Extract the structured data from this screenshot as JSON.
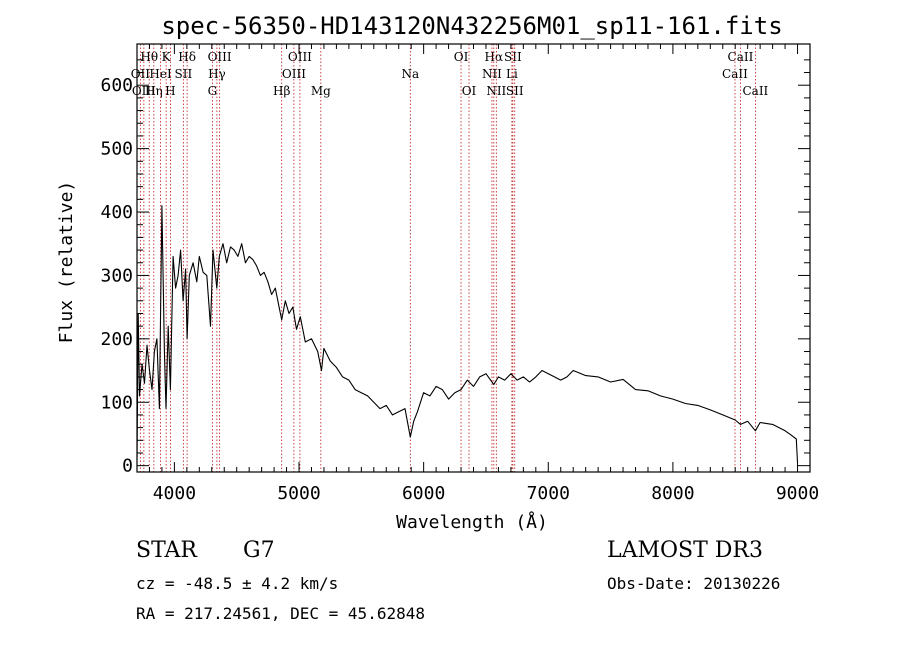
{
  "chart_data": {
    "type": "line",
    "title": "spec-56350-HD143120N432256M01_sp11-161.fits",
    "xlabel": "Wavelength (Å)",
    "ylabel": "Flux (relative)",
    "xlim": [
      3700,
      9100
    ],
    "ylim": [
      -10,
      665
    ],
    "xticks": [
      4000,
      5000,
      6000,
      7000,
      8000,
      9000
    ],
    "yticks": [
      0,
      100,
      200,
      300,
      400,
      500,
      600
    ],
    "grid": false,
    "series": [
      {
        "name": "flux",
        "x": [
          3700,
          3710,
          3720,
          3740,
          3760,
          3780,
          3800,
          3820,
          3840,
          3860,
          3880,
          3900,
          3920,
          3933,
          3950,
          3968,
          3990,
          4010,
          4030,
          4050,
          4070,
          4090,
          4102,
          4120,
          4150,
          4180,
          4200,
          4230,
          4260,
          4290,
          4310,
          4340,
          4360,
          4390,
          4420,
          4450,
          4480,
          4510,
          4540,
          4570,
          4600,
          4630,
          4660,
          4690,
          4720,
          4750,
          4780,
          4810,
          4840,
          4861,
          4890,
          4920,
          4950,
          4980,
          5010,
          5050,
          5100,
          5150,
          5180,
          5200,
          5250,
          5300,
          5350,
          5400,
          5450,
          5500,
          5550,
          5600,
          5650,
          5700,
          5750,
          5800,
          5850,
          5893,
          5920,
          5950,
          6000,
          6050,
          6100,
          6150,
          6200,
          6250,
          6300,
          6350,
          6400,
          6450,
          6500,
          6563,
          6600,
          6650,
          6700,
          6750,
          6800,
          6850,
          6900,
          6950,
          7000,
          7050,
          7100,
          7150,
          7200,
          7300,
          7400,
          7500,
          7600,
          7700,
          7800,
          7900,
          8000,
          8100,
          8200,
          8300,
          8400,
          8500,
          8542,
          8600,
          8662,
          8700,
          8800,
          8900,
          8950,
          8990,
          9000
        ],
        "values": [
          10,
          240,
          110,
          160,
          130,
          190,
          150,
          120,
          180,
          200,
          90,
          410,
          180,
          90,
          220,
          120,
          330,
          280,
          300,
          340,
          260,
          310,
          200,
          300,
          320,
          290,
          330,
          305,
          300,
          220,
          340,
          280,
          330,
          350,
          320,
          345,
          340,
          330,
          350,
          320,
          330,
          325,
          315,
          300,
          305,
          290,
          270,
          280,
          250,
          230,
          260,
          240,
          250,
          215,
          235,
          195,
          200,
          180,
          150,
          185,
          165,
          155,
          140,
          135,
          120,
          115,
          110,
          100,
          90,
          95,
          80,
          85,
          90,
          45,
          70,
          85,
          115,
          110,
          125,
          120,
          105,
          115,
          120,
          135,
          125,
          140,
          145,
          128,
          140,
          135,
          145,
          135,
          140,
          132,
          140,
          150,
          145,
          140,
          135,
          140,
          150,
          142,
          140,
          132,
          136,
          120,
          118,
          110,
          105,
          98,
          95,
          88,
          80,
          72,
          65,
          70,
          55,
          68,
          65,
          55,
          48,
          42,
          5
        ]
      }
    ],
    "line_markers": [
      {
        "label": "Hθ",
        "wavelength": 3798,
        "row": 1
      },
      {
        "label": "OII",
        "wavelength": 3727,
        "row": 2
      },
      {
        "label": "OIII",
        "wavelength": 3755,
        "row": 3
      },
      {
        "label": "Hη",
        "wavelength": 3835,
        "row": 3
      },
      {
        "label": "HeI",
        "wavelength": 3889,
        "row": 2
      },
      {
        "label": "K",
        "wavelength": 3934,
        "row": 1
      },
      {
        "label": "H",
        "wavelength": 3968,
        "row": 3
      },
      {
        "label": "SII",
        "wavelength": 4072,
        "row": 2
      },
      {
        "label": "Hδ",
        "wavelength": 4102,
        "row": 1
      },
      {
        "label": "OIII",
        "wavelength": 4363,
        "row": 1
      },
      {
        "label": "Hγ",
        "wavelength": 4341,
        "row": 2
      },
      {
        "label": "G",
        "wavelength": 4305,
        "row": 3
      },
      {
        "label": "Hβ",
        "wavelength": 4861,
        "row": 3
      },
      {
        "label": "OIII",
        "wavelength": 5007,
        "row": 1
      },
      {
        "label": "OIII",
        "wavelength": 4959,
        "row": 2
      },
      {
        "label": "Mg",
        "wavelength": 5175,
        "row": 3
      },
      {
        "label": "Na",
        "wavelength": 5893,
        "row": 2
      },
      {
        "label": "OI",
        "wavelength": 6300,
        "row": 1
      },
      {
        "label": "OI",
        "wavelength": 6364,
        "row": 3
      },
      {
        "label": "Hα",
        "wavelength": 6563,
        "row": 1
      },
      {
        "label": "NII",
        "wavelength": 6548,
        "row": 2
      },
      {
        "label": "NII",
        "wavelength": 6583,
        "row": 3
      },
      {
        "label": "SII",
        "wavelength": 6716,
        "row": 1
      },
      {
        "label": "Li",
        "wavelength": 6708,
        "row": 2
      },
      {
        "label": "SII",
        "wavelength": 6731,
        "row": 3
      },
      {
        "label": "CaII",
        "wavelength": 8542,
        "row": 1
      },
      {
        "label": "CaII",
        "wavelength": 8498,
        "row": 2
      },
      {
        "label": "CaII",
        "wavelength": 8662,
        "row": 3
      }
    ]
  },
  "info": {
    "object_class": "STAR",
    "subclass": "G7",
    "survey": "LAMOST DR3",
    "redshift": "cz = -48.5 ± 4.2 km/s",
    "obs_date": "Obs-Date: 20130226",
    "coords": "RA = 217.24561, DEC =  45.62848"
  }
}
